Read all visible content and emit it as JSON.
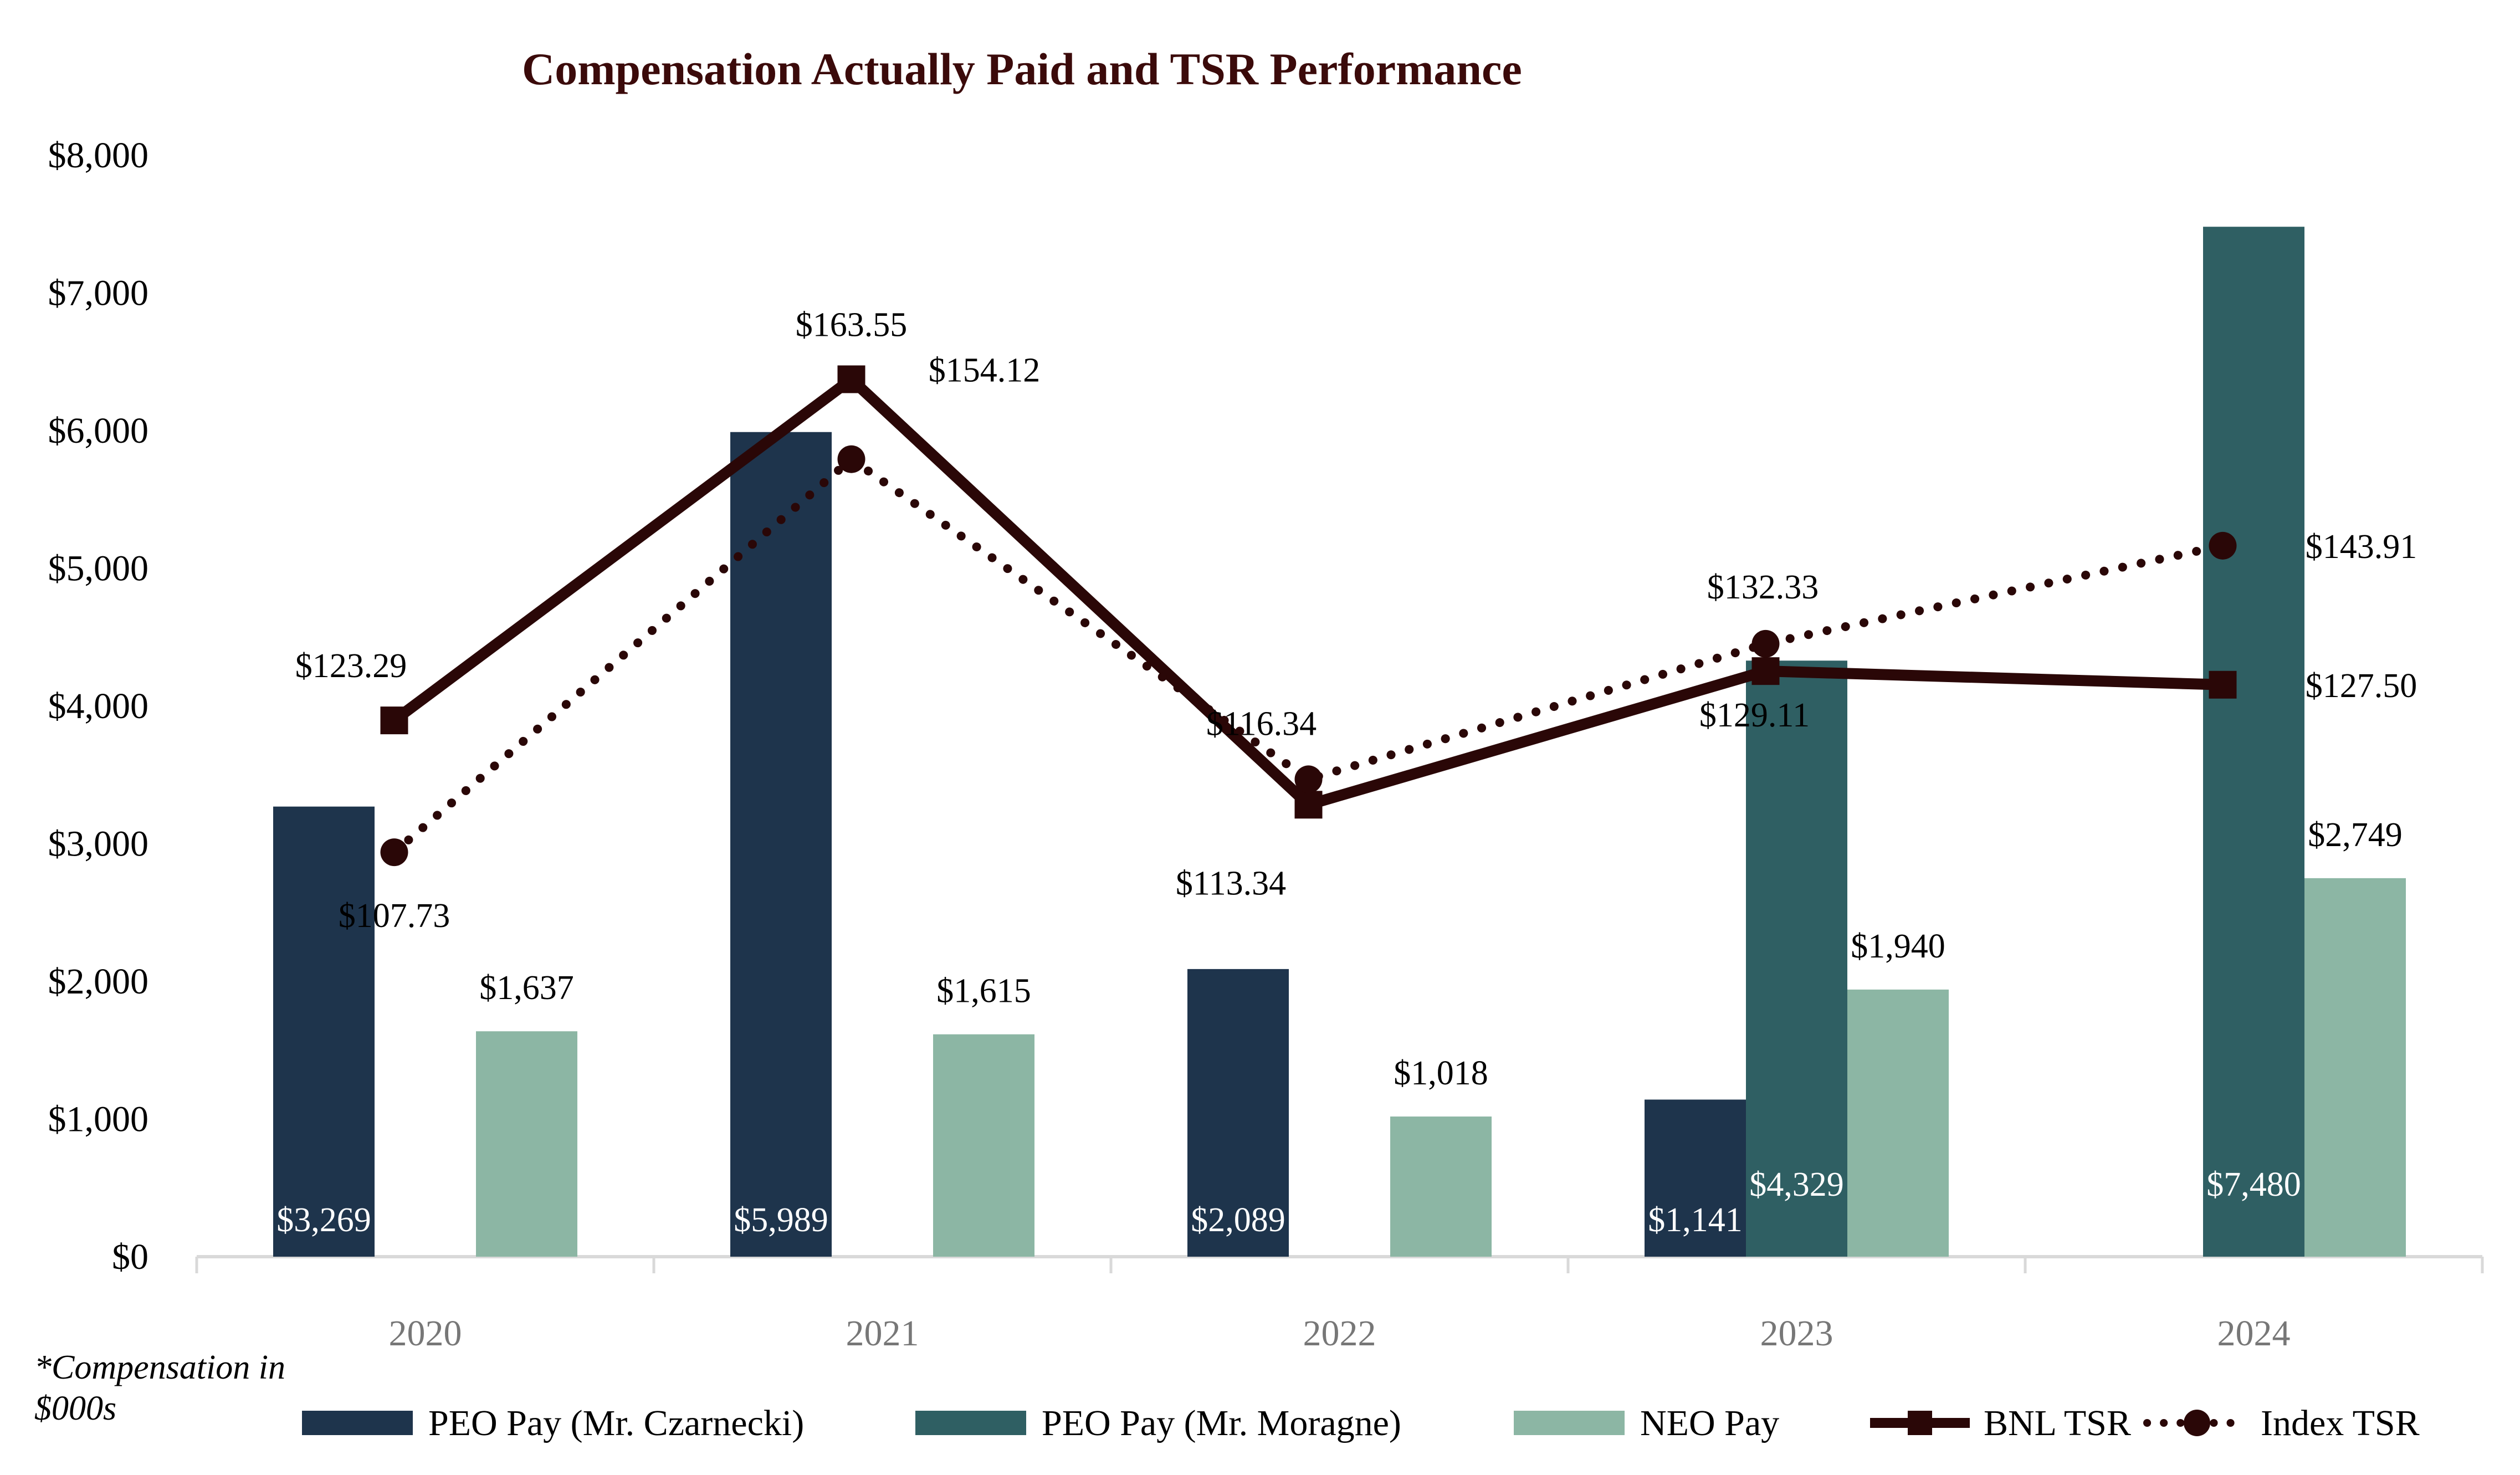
{
  "chart_data": {
    "type": "bar",
    "title": "Compensation Actually Paid and TSR Performance",
    "footnote_line1": "*Compensation in",
    "footnote_line2": "$000s",
    "categories": [
      "2020",
      "2021",
      "2022",
      "2023",
      "2024"
    ],
    "ylim": [
      0,
      8000
    ],
    "yticks": [
      {
        "value": 0,
        "label": "$0"
      },
      {
        "value": 1000,
        "label": "$1,000"
      },
      {
        "value": 2000,
        "label": "$2,000"
      },
      {
        "value": 3000,
        "label": "$3,000"
      },
      {
        "value": 4000,
        "label": "$4,000"
      },
      {
        "value": 5000,
        "label": "$5,000"
      },
      {
        "value": 6000,
        "label": "$6,000"
      },
      {
        "value": 7000,
        "label": "$7,000"
      },
      {
        "value": 8000,
        "label": "$8,000"
      }
    ],
    "series": [
      {
        "name": "PEO Pay (Mr. Czarnecki)",
        "kind": "bar",
        "color": "#1e344c",
        "values": [
          3269,
          5989,
          2089,
          1141,
          null
        ],
        "labels": [
          "$3,269",
          "$5,989",
          "$2,089",
          "$1,141",
          null
        ]
      },
      {
        "name": "PEO Pay (Mr. Moragne)",
        "kind": "bar",
        "color": "#2f5f63",
        "values": [
          null,
          null,
          null,
          4329,
          7480
        ],
        "labels": [
          null,
          null,
          null,
          "$4,329",
          "$7,480"
        ]
      },
      {
        "name": "NEO Pay",
        "kind": "bar",
        "color": "#8cb6a4",
        "values": [
          1637,
          1615,
          1018,
          1940,
          2749
        ],
        "labels": [
          "$1,637",
          "$1,615",
          "$1,018",
          "$1,940",
          "$2,749"
        ]
      },
      {
        "name": "BNL TSR",
        "kind": "line",
        "color": "#2a0707",
        "values": [
          123.29,
          163.55,
          113.34,
          129.11,
          127.5
        ],
        "labels": [
          "$123.29",
          "$163.55",
          "$113.34",
          "$129.11",
          "$127.50"
        ]
      },
      {
        "name": "Index TSR",
        "kind": "line-dotted",
        "color": "#2a0707",
        "values": [
          107.73,
          154.12,
          116.34,
          132.33,
          143.91
        ],
        "labels": [
          "$107.73",
          "$154.12",
          "$116.34",
          "$132.33",
          "$143.91"
        ]
      }
    ],
    "tsr_axis_hidden": {
      "min": 60,
      "max": 190
    }
  }
}
